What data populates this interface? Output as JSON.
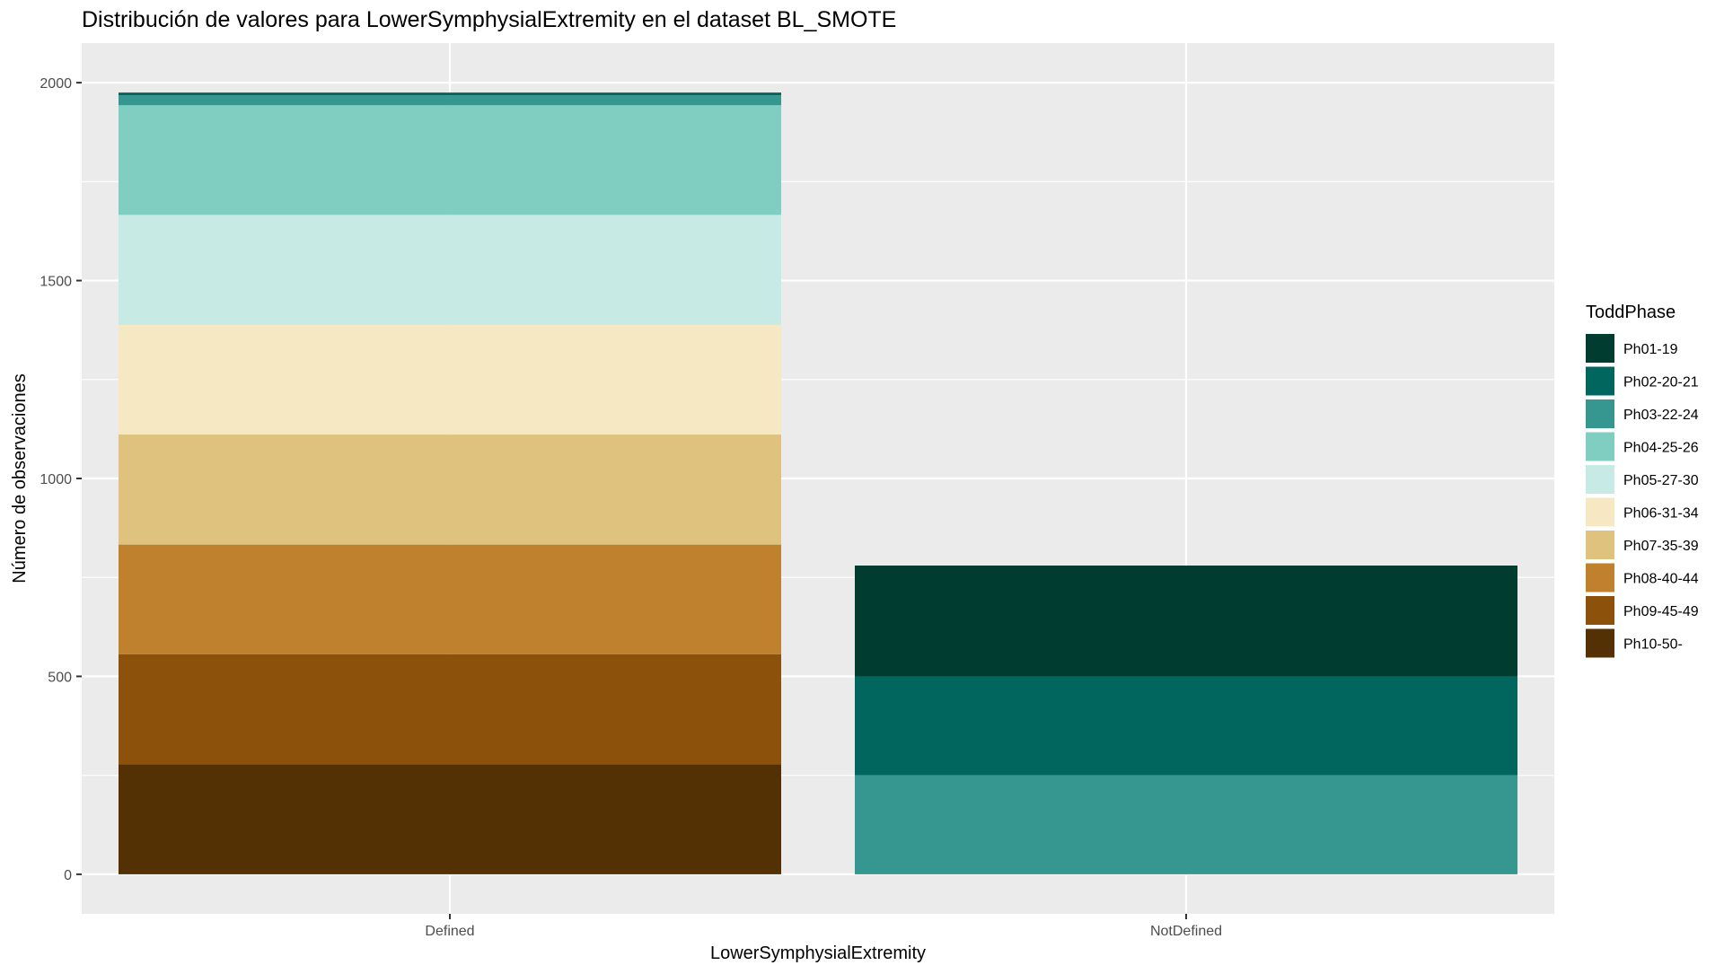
{
  "chart_data": {
    "type": "bar",
    "stacked": true,
    "title": "Distribución de valores para LowerSymphysialExtremity en el dataset BL_SMOTE",
    "xlabel": "LowerSymphysialExtremity",
    "ylabel": "Número de observaciones",
    "categories": [
      "Defined",
      "NotDefined"
    ],
    "ylim": [
      -100,
      2100
    ],
    "yticks": [
      0,
      500,
      1000,
      1500,
      2000
    ],
    "grid": true,
    "legend_position": "right",
    "legend_title": "ToddPhase",
    "series": [
      {
        "name": "Ph01-19",
        "color": "#003C30",
        "values": [
          0,
          280
        ]
      },
      {
        "name": "Ph02-20-21",
        "color": "#01665E",
        "values": [
          7,
          250
        ]
      },
      {
        "name": "Ph03-22-24",
        "color": "#35978F",
        "values": [
          25,
          250
        ]
      },
      {
        "name": "Ph04-25-26",
        "color": "#80CDC1",
        "values": [
          277,
          0
        ]
      },
      {
        "name": "Ph05-27-30",
        "color": "#C7EAE5",
        "values": [
          278,
          0
        ]
      },
      {
        "name": "Ph06-31-34",
        "color": "#F6E8C3",
        "values": [
          277,
          0
        ]
      },
      {
        "name": "Ph07-35-39",
        "color": "#DFC27D",
        "values": [
          278,
          0
        ]
      },
      {
        "name": "Ph08-40-44",
        "color": "#BF812D",
        "values": [
          277,
          0
        ]
      },
      {
        "name": "Ph09-45-49",
        "color": "#8C510A",
        "values": [
          278,
          0
        ]
      },
      {
        "name": "Ph10-50-",
        "color": "#543005",
        "values": [
          278,
          0
        ]
      }
    ]
  }
}
